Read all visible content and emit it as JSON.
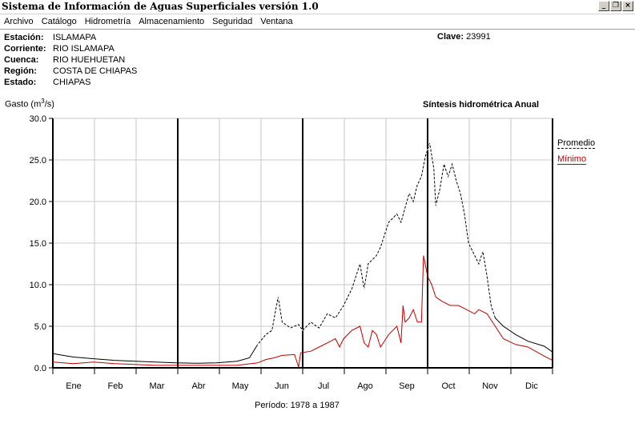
{
  "window": {
    "title": "Sistema de Información de Aguas Superficiales  versión 1.0",
    "buttons": {
      "minimize": "_",
      "restore": "❐",
      "close": "×"
    }
  },
  "menu": [
    "Archivo",
    "Catálogo",
    "Hidrometría",
    "Almacenamiento",
    "Seguridad",
    "Ventana"
  ],
  "station": {
    "rows": [
      {
        "label": "Estación:",
        "value": "ISLAMAPA"
      },
      {
        "label": "Corriente:",
        "value": "RIO ISLAMAPA"
      },
      {
        "label": "Cuenca:",
        "value": "RIO HUEHUETAN"
      },
      {
        "label": "Región:",
        "value": "COSTA DE CHIAPAS"
      },
      {
        "label": "Estado:",
        "value": "CHIAPAS"
      }
    ],
    "clave_label": "Clave:",
    "clave_value": "23991"
  },
  "header": {
    "synthesis": "Síntesis hidrométrica   Anual"
  },
  "footer": {
    "periodo": "Período:  1978 a 1987"
  },
  "chart_data": {
    "type": "line",
    "ylabel_prefix": "Gasto (m",
    "ylabel_sup": "3",
    "ylabel_suffix": "/s)",
    "ylim": [
      0,
      30
    ],
    "yticks": [
      "0.0",
      "5.0",
      "10.0",
      "15.0",
      "20.0",
      "25.0",
      "30.0"
    ],
    "categories": [
      "Ene",
      "Feb",
      "Mar",
      "Abr",
      "May",
      "Jun",
      "Jul",
      "Ago",
      "Sep",
      "Oct",
      "Nov",
      "Dic"
    ],
    "grid": true,
    "legend_position": "right",
    "series": [
      {
        "name": "Promedio",
        "color": "#000000",
        "style": "solid-dashed",
        "points": [
          [
            0,
            1.7
          ],
          [
            0.5,
            1.3
          ],
          [
            1,
            1.1
          ],
          [
            1.5,
            0.9
          ],
          [
            2,
            0.8
          ],
          [
            2.5,
            0.7
          ],
          [
            3,
            0.6
          ],
          [
            3.5,
            0.55
          ],
          [
            4,
            0.6
          ],
          [
            4.5,
            0.8
          ],
          [
            4.8,
            1.2
          ],
          [
            5.0,
            2.8
          ],
          [
            5.2,
            4.0
          ],
          [
            5.35,
            4.5
          ],
          [
            5.5,
            8.5
          ],
          [
            5.6,
            5.5
          ],
          [
            5.8,
            4.8
          ],
          [
            6.0,
            5.2
          ],
          [
            6.1,
            4.5
          ],
          [
            6.3,
            5.5
          ],
          [
            6.5,
            4.8
          ],
          [
            6.7,
            6.5
          ],
          [
            6.9,
            6.0
          ],
          [
            7.1,
            7.5
          ],
          [
            7.3,
            9.5
          ],
          [
            7.5,
            12.5
          ],
          [
            7.6,
            9.5
          ],
          [
            7.7,
            12.5
          ],
          [
            7.9,
            13.5
          ],
          [
            8.0,
            14.5
          ],
          [
            8.2,
            17.5
          ],
          [
            8.4,
            18.5
          ],
          [
            8.5,
            17.5
          ],
          [
            8.7,
            21.0
          ],
          [
            8.8,
            20.0
          ],
          [
            8.9,
            22.0
          ],
          [
            9.0,
            23.0
          ],
          [
            9.1,
            25.5
          ],
          [
            9.2,
            27.0
          ],
          [
            9.3,
            24.0
          ],
          [
            9.35,
            19.5
          ],
          [
            9.45,
            21.5
          ],
          [
            9.55,
            24.5
          ],
          [
            9.65,
            23.0
          ],
          [
            9.75,
            24.5
          ],
          [
            9.85,
            22.5
          ],
          [
            9.95,
            21.0
          ],
          [
            10.05,
            18.5
          ],
          [
            10.15,
            15.0
          ],
          [
            10.3,
            13.5
          ],
          [
            10.4,
            12.5
          ],
          [
            10.5,
            14.0
          ],
          [
            10.6,
            11.0
          ],
          [
            10.7,
            7.5
          ],
          [
            10.8,
            6.0
          ],
          [
            11.0,
            5.0
          ],
          [
            11.3,
            4.0
          ],
          [
            11.6,
            3.2
          ],
          [
            12.0,
            2.6
          ],
          [
            12.2,
            1.9
          ]
        ]
      },
      {
        "name": "Mínimo",
        "color": "#c00000",
        "style": "solid",
        "points": [
          [
            0,
            0.7
          ],
          [
            0.5,
            0.5
          ],
          [
            1,
            0.7
          ],
          [
            1.5,
            0.5
          ],
          [
            2,
            0.4
          ],
          [
            2.5,
            0.3
          ],
          [
            3,
            0.3
          ],
          [
            3.5,
            0.3
          ],
          [
            4,
            0.3
          ],
          [
            4.5,
            0.3
          ],
          [
            5.0,
            0.6
          ],
          [
            5.2,
            1.0
          ],
          [
            5.4,
            1.2
          ],
          [
            5.6,
            1.5
          ],
          [
            5.9,
            1.6
          ],
          [
            6.0,
            0.1
          ],
          [
            6.05,
            1.8
          ],
          [
            6.3,
            2.0
          ],
          [
            6.5,
            2.5
          ],
          [
            6.7,
            3.0
          ],
          [
            6.9,
            3.5
          ],
          [
            7.0,
            2.5
          ],
          [
            7.1,
            3.5
          ],
          [
            7.3,
            4.5
          ],
          [
            7.5,
            5.0
          ],
          [
            7.6,
            3.0
          ],
          [
            7.7,
            2.5
          ],
          [
            7.8,
            4.5
          ],
          [
            7.9,
            4.0
          ],
          [
            8.0,
            2.5
          ],
          [
            8.2,
            4.0
          ],
          [
            8.3,
            4.5
          ],
          [
            8.4,
            5.0
          ],
          [
            8.5,
            3.0
          ],
          [
            8.55,
            7.5
          ],
          [
            8.6,
            5.5
          ],
          [
            8.7,
            6.0
          ],
          [
            8.8,
            7.0
          ],
          [
            8.9,
            5.5
          ],
          [
            9.0,
            5.5
          ],
          [
            9.05,
            13.5
          ],
          [
            9.15,
            11.0
          ],
          [
            9.25,
            10.0
          ],
          [
            9.35,
            8.5
          ],
          [
            9.5,
            8.0
          ],
          [
            9.7,
            7.5
          ],
          [
            9.9,
            7.5
          ],
          [
            10.1,
            7.0
          ],
          [
            10.3,
            6.5
          ],
          [
            10.4,
            7.0
          ],
          [
            10.6,
            6.5
          ],
          [
            10.8,
            5.0
          ],
          [
            11.0,
            3.5
          ],
          [
            11.3,
            2.8
          ],
          [
            11.6,
            2.5
          ],
          [
            12.0,
            1.4
          ],
          [
            12.2,
            0.9
          ]
        ]
      }
    ]
  }
}
